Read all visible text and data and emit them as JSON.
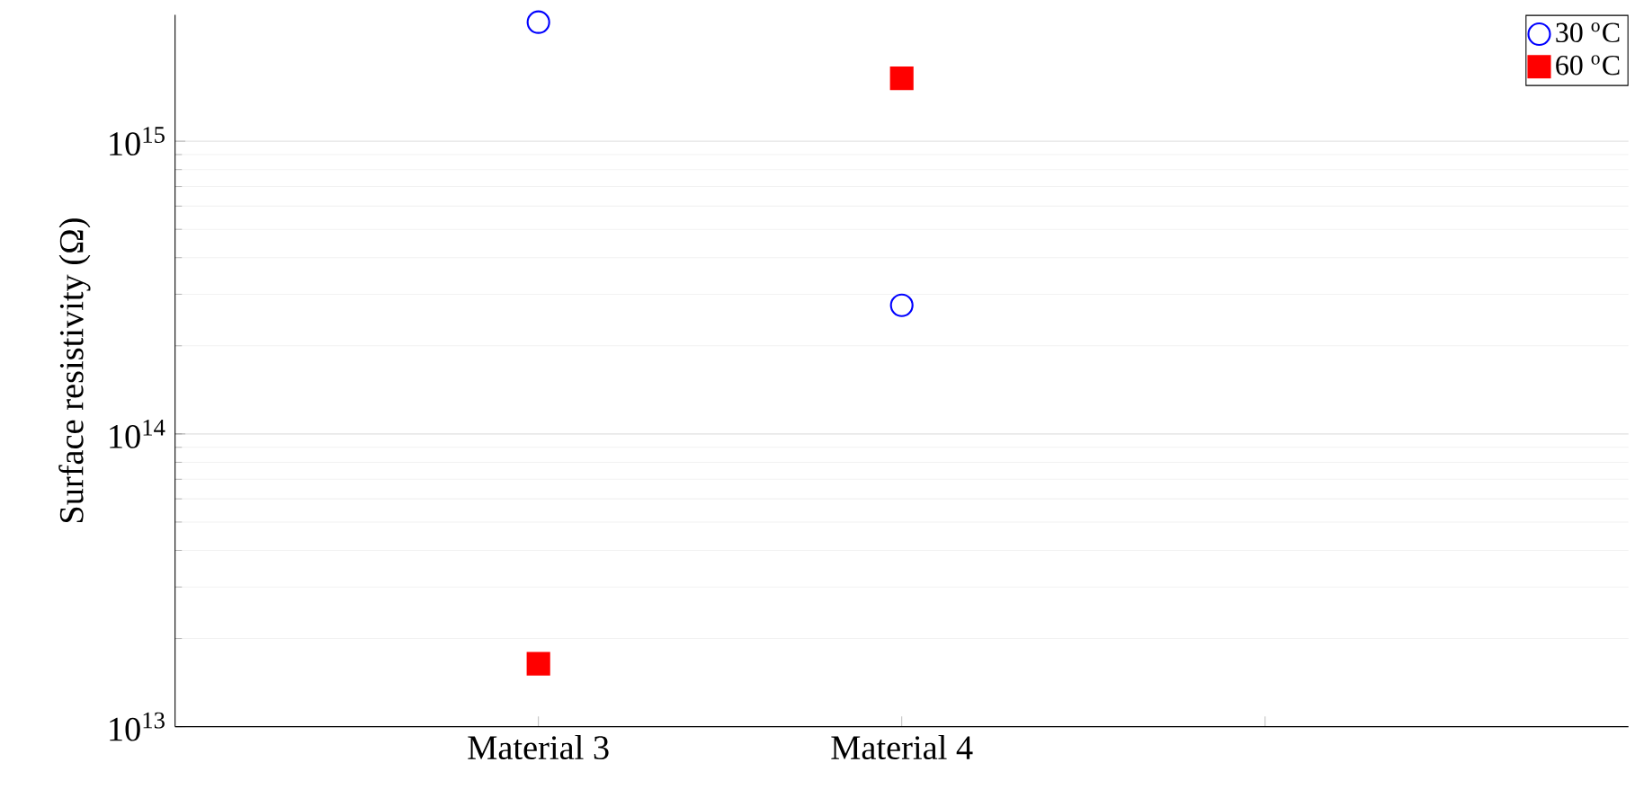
{
  "chart_data": {
    "type": "scatter",
    "ylabel": "Surface resistivity (Ω)",
    "categories": [
      "Material 3",
      "Material 4",
      null
    ],
    "series": [
      {
        "name": "30 $^{o}$C",
        "color": "#0000ff",
        "marker": "circle",
        "values": [
          2550000000000000.0,
          275000000000000.0,
          null
        ]
      },
      {
        "name": "60 $^{o}$C",
        "color": "#ff0000",
        "marker": "square",
        "values": [
          16400000000000.0,
          1640000000000000.0,
          null
        ]
      }
    ],
    "log": "y",
    "ylim": [
      10000000000000.0,
      2700000000000000.0
    ],
    "yticks": [
      {
        "value": 10000000000000.0,
        "label": "10$^{13}$"
      },
      {
        "value": 100000000000000.0,
        "label": "10$^{14}$"
      },
      {
        "value": 1000000000000000.0,
        "label": "10$^{15}$"
      }
    ],
    "grid": "y",
    "legend": "top right"
  }
}
